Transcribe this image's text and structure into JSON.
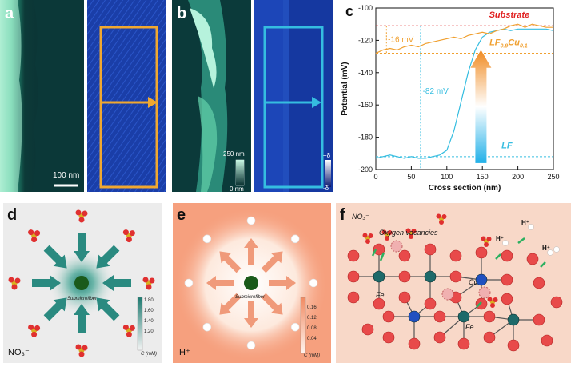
{
  "panels": {
    "a": {
      "label": "a",
      "scale": "100 nm"
    },
    "b": {
      "label": "b",
      "scale_max": "250 nm",
      "scale_min": "0 nm",
      "kpfm_max": "+δ",
      "kpfm_min": "-δ"
    },
    "c": {
      "label": "c"
    },
    "d": {
      "label": "d",
      "top_ion": "NO₃⁻",
      "ion": "NO₃⁻",
      "center": "Submicrofiber",
      "colorbar_ticks": [
        "1.80",
        "1.60",
        "1.40",
        "1.20",
        "1.00"
      ],
      "colorbar_unit": "C (mM)"
    },
    "e": {
      "label": "e",
      "ion": "H⁺",
      "center": "Submicrofiber",
      "colorbar_ticks": [
        "0.16",
        "0.12",
        "0.08",
        "0.04",
        "0.00"
      ],
      "colorbar_unit": "C (mM)"
    },
    "f": {
      "label": "f",
      "no3": "NO₃⁻",
      "vacancy": "Oxygen vacancies",
      "hplus": "H⁺",
      "fe": "Fe",
      "cu": "Cu",
      "fe2": "Fe"
    }
  },
  "colors": {
    "orange": "#f0a030",
    "cyan": "#35bde0",
    "red": "#e02020",
    "teal": "#1e7a70"
  },
  "chart_data": {
    "type": "line",
    "xlabel": "Cross section (nm)",
    "ylabel": "Potential (mV)",
    "xlim": [
      0,
      250
    ],
    "ylim": [
      -200,
      -100
    ],
    "x_ticks": [
      "0",
      "50",
      "100",
      "150",
      "200",
      "250"
    ],
    "y_ticks": [
      "-100",
      "-120",
      "-140",
      "-160",
      "-180",
      "-200"
    ],
    "series": [
      {
        "name": "LF",
        "color": "#35bde0",
        "x": [
          0,
          10,
          20,
          30,
          40,
          50,
          60,
          70,
          80,
          90,
          100,
          110,
          120,
          130,
          140,
          150,
          160,
          170,
          180,
          190,
          200,
          210,
          220,
          230,
          240,
          250
        ],
        "y": [
          -193,
          -192,
          -191,
          -192,
          -193,
          -192,
          -193,
          -193,
          -192,
          -191,
          -188,
          -176,
          -158,
          -140,
          -126,
          -118,
          -115,
          -114,
          -113,
          -114,
          -113,
          -113,
          -113,
          -113,
          -113,
          -114
        ]
      },
      {
        "name": "LF0.9Cu0.1",
        "color": "#f0a030",
        "x": [
          0,
          10,
          20,
          30,
          40,
          50,
          60,
          70,
          80,
          90,
          100,
          110,
          120,
          130,
          140,
          150,
          160,
          170,
          180,
          190,
          200,
          210,
          220,
          230,
          240,
          250
        ],
        "y": [
          -128,
          -126,
          -125,
          -126,
          -124,
          -123,
          -124,
          -122,
          -121,
          -120,
          -119,
          -118,
          -119,
          -117,
          -116,
          -115,
          -116,
          -114,
          -113,
          -111,
          -110,
          -112,
          -110,
          -111,
          -112,
          -112
        ]
      }
    ],
    "reference_lines": [
      {
        "label": "Substrate",
        "y": -111,
        "color": "#e02020"
      },
      {
        "label_main": "LF",
        "label_sub": "0.9",
        "label_main2": "Cu",
        "label_sub2": "0.1",
        "y": -128,
        "color": "#f0a030"
      },
      {
        "label": "LF",
        "y": -192,
        "color": "#35bde0"
      }
    ],
    "annotations": [
      {
        "text": "-16 mV",
        "color": "#f0a030"
      },
      {
        "text": "-82 mV",
        "color": "#35bde0"
      }
    ]
  }
}
